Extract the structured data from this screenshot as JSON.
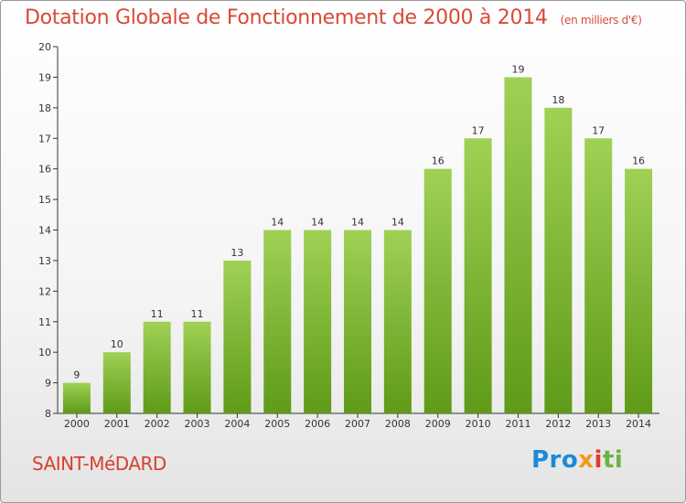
{
  "header": {
    "title": "Dotation Globale de Fonctionnement de 2000 à 2014",
    "subtitle": "(en milliers d'€)"
  },
  "footer": {
    "commune": "SAINT-MéDARD",
    "logo_parts": [
      "Pro",
      "x",
      "i",
      "ti"
    ]
  },
  "colors": {
    "title": "#d84a35",
    "bar_light": "#9fd155",
    "bar_dark": "#5f9a18",
    "logo": [
      "#1c8ad8",
      "#f29a16",
      "#e33b2c",
      "#6cb33f"
    ]
  },
  "chart_data": {
    "type": "bar",
    "title": "Dotation Globale de Fonctionnement de 2000 à 2014",
    "subtitle": "(en milliers d'€)",
    "categories": [
      "2000",
      "2001",
      "2002",
      "2003",
      "2004",
      "2005",
      "2006",
      "2007",
      "2008",
      "2009",
      "2010",
      "2011",
      "2012",
      "2013",
      "2014"
    ],
    "values": [
      9,
      10,
      11,
      11,
      13,
      14,
      14,
      14,
      14,
      16,
      17,
      19,
      18,
      17,
      16
    ],
    "ylim": [
      8,
      20
    ],
    "yticks": [
      8,
      9,
      10,
      11,
      12,
      13,
      14,
      15,
      16,
      17,
      18,
      19,
      20
    ],
    "xlabel": "",
    "ylabel": "",
    "grid": false,
    "legend": "none"
  }
}
